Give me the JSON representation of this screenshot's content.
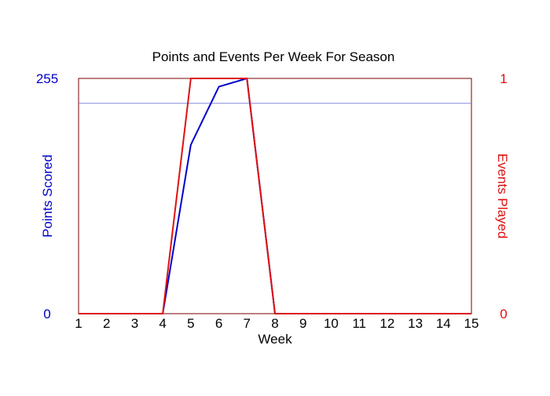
{
  "chart_data": {
    "type": "line",
    "title": "Points and Events Per Week For Season",
    "xlabel": "Week",
    "x": [
      1,
      2,
      3,
      4,
      5,
      6,
      7,
      8,
      9,
      10,
      11,
      12,
      13,
      14,
      15
    ],
    "xlim": [
      1,
      15
    ],
    "y_left": {
      "label": "Points Scored",
      "lim": [
        0,
        255
      ],
      "tick_labels": [
        "0",
        "255"
      ],
      "color": "#0000cc"
    },
    "y_right": {
      "label": "Events Played",
      "lim": [
        0,
        1
      ],
      "tick_labels": [
        "0",
        "1"
      ],
      "color": "#dd1111"
    },
    "series": [
      {
        "axis": "left",
        "color": "#0000cc",
        "values": [
          0,
          0,
          0,
          0,
          183,
          246,
          255,
          0,
          0,
          0,
          0,
          0,
          0,
          0,
          0
        ]
      },
      {
        "axis": "right",
        "color": "#dd1111",
        "values": [
          0,
          0,
          0,
          0,
          1,
          1,
          1,
          0,
          0,
          0,
          0,
          0,
          0,
          0,
          0
        ]
      }
    ],
    "reference_line": {
      "axis": "left",
      "value": 228,
      "color": "#8888dd"
    },
    "frame_color": "#7a0000",
    "grid": false
  }
}
